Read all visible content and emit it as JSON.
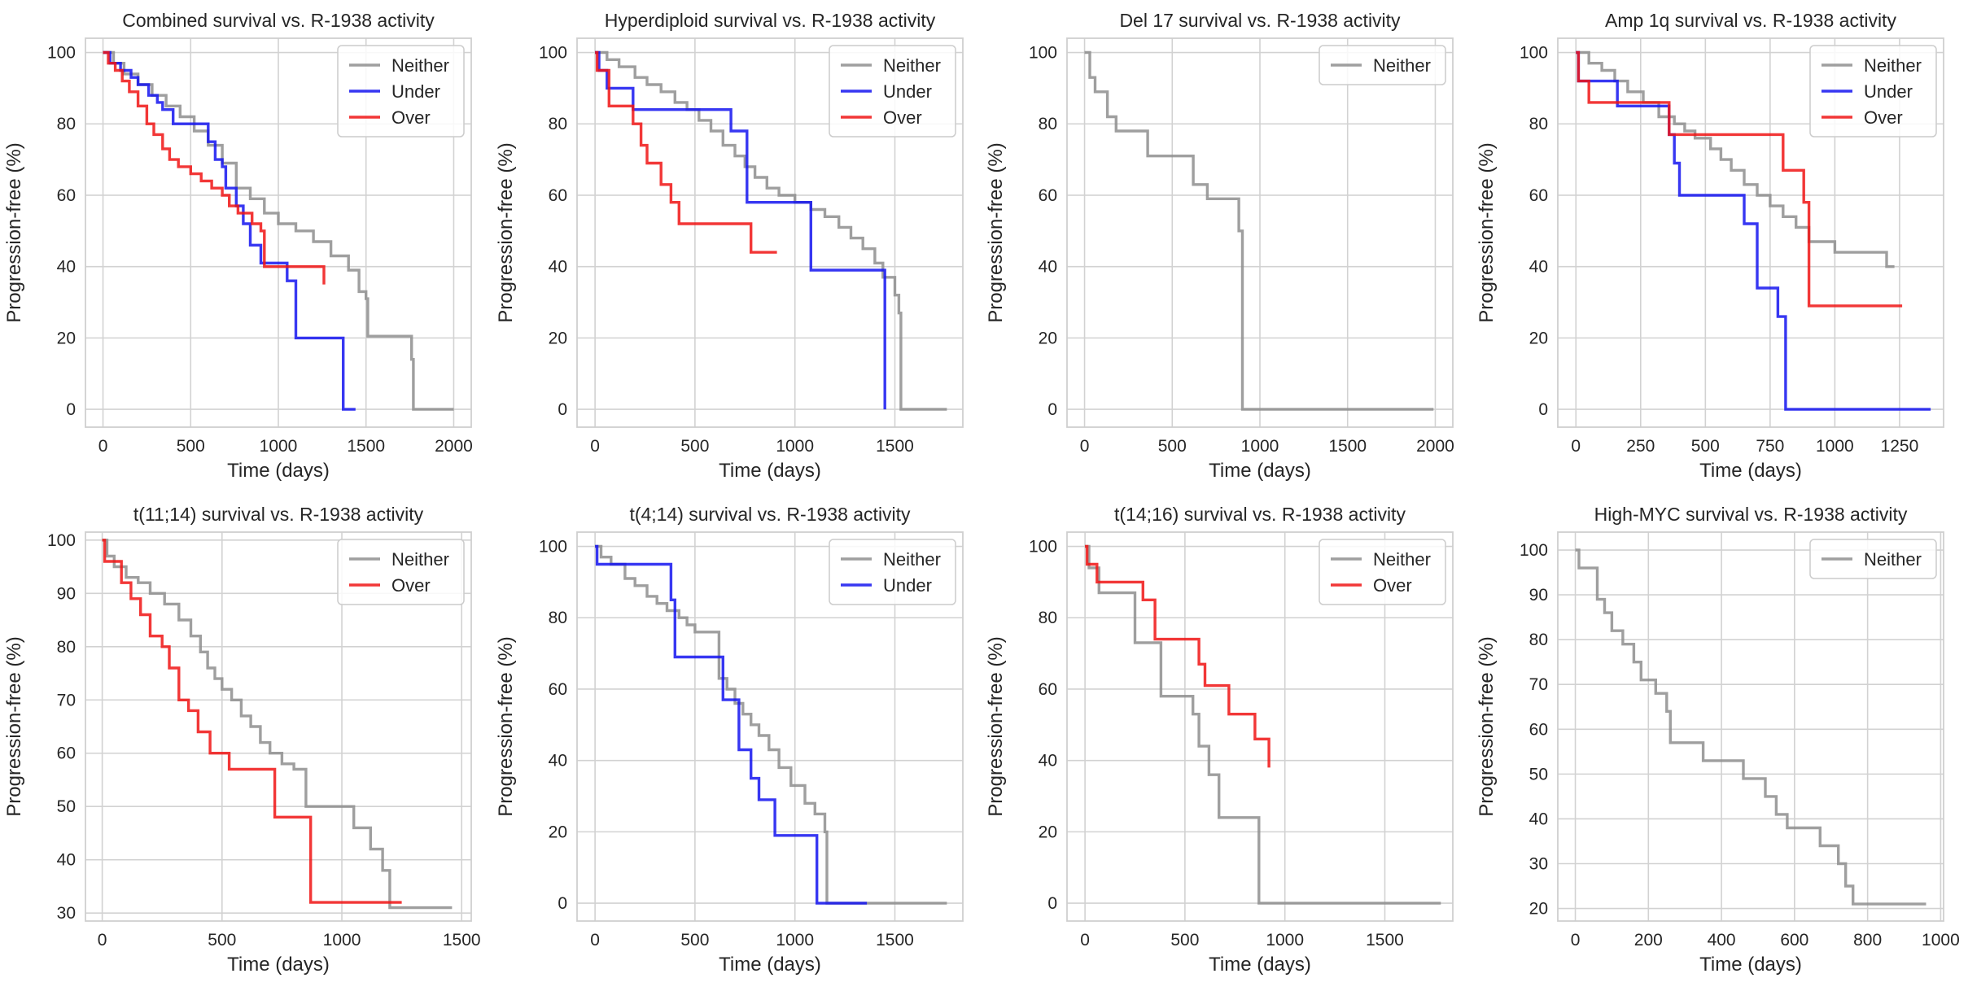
{
  "colors": {
    "Neither": "#8e8e8e",
    "Under": "#1414f0",
    "Over": "#f01414",
    "grid": "#d2d2d2",
    "frame": "#cfcfcf"
  },
  "chart_data": [
    {
      "type": "line",
      "step": true,
      "title": "Combined survival vs. R-1938 activity",
      "xlabel": "Time (days)",
      "ylabel": "Progression-free (%)",
      "xlim": [
        -100,
        2100
      ],
      "ylim": [
        -5,
        104
      ],
      "xticks": [
        0,
        500,
        1000,
        1500,
        2000
      ],
      "xtick_labels": [
        "0",
        "500",
        "1000",
        "1500",
        "2000"
      ],
      "yticks": [
        0,
        20,
        40,
        60,
        80,
        100
      ],
      "ytick_labels": [
        "0",
        "20",
        "40",
        "60",
        "80",
        "100"
      ],
      "grid": true,
      "legend": "top-right",
      "series": [
        {
          "name": "Neither",
          "x": [
            0,
            60,
            120,
            200,
            280,
            360,
            440,
            520,
            600,
            680,
            760,
            840,
            920,
            1000,
            1100,
            1200,
            1300,
            1400,
            1460,
            1500,
            1510,
            1600,
            1700,
            1760,
            1770,
            2000
          ],
          "y": [
            100,
            97,
            94,
            91,
            88,
            85,
            82,
            78,
            74,
            69,
            62,
            59,
            55,
            52,
            50,
            47,
            43,
            39,
            33,
            31,
            20.5,
            20.5,
            20.5,
            14,
            0,
            0
          ]
        },
        {
          "name": "Under",
          "x": [
            0,
            40,
            100,
            160,
            200,
            260,
            310,
            340,
            400,
            560,
            600,
            640,
            680,
            700,
            760,
            800,
            840,
            900,
            1000,
            1050,
            1100,
            1340,
            1370,
            1440
          ],
          "y": [
            100,
            97,
            95,
            93,
            91,
            88,
            86,
            84,
            80,
            80,
            75,
            70,
            68,
            62,
            57,
            52,
            46,
            41,
            41,
            36,
            20,
            20,
            0,
            0
          ]
        },
        {
          "name": "Over",
          "x": [
            0,
            30,
            70,
            110,
            150,
            200,
            250,
            290,
            340,
            380,
            430,
            500,
            560,
            620,
            680,
            720,
            770,
            850,
            900,
            920,
            1100,
            1250,
            1260
          ],
          "y": [
            100,
            97,
            95,
            92,
            89,
            85,
            80,
            77,
            73,
            70,
            68,
            66,
            64,
            62,
            60,
            57,
            55,
            52,
            50,
            40,
            40,
            40,
            35
          ]
        }
      ]
    },
    {
      "type": "line",
      "step": true,
      "title": "Hyperdiploid survival vs. R-1938 activity",
      "xlabel": "Time (days)",
      "ylabel": "Progression-free (%)",
      "xlim": [
        -90,
        1840
      ],
      "ylim": [
        -5,
        104
      ],
      "xticks": [
        0,
        500,
        1000,
        1500
      ],
      "xtick_labels": [
        "0",
        "500",
        "1000",
        "1500"
      ],
      "yticks": [
        0,
        20,
        40,
        60,
        80,
        100
      ],
      "ytick_labels": [
        "0",
        "20",
        "40",
        "60",
        "80",
        "100"
      ],
      "grid": true,
      "legend": "top-right",
      "series": [
        {
          "name": "Neither",
          "x": [
            0,
            60,
            120,
            200,
            260,
            330,
            400,
            460,
            520,
            580,
            640,
            700,
            750,
            800,
            860,
            920,
            1000,
            1080,
            1150,
            1220,
            1280,
            1340,
            1400,
            1440,
            1500,
            1520,
            1530,
            1760
          ],
          "y": [
            100,
            98,
            96,
            93,
            91,
            89,
            86,
            84,
            81,
            78,
            74,
            71,
            68,
            65,
            62,
            60,
            58,
            56,
            54,
            51,
            48,
            45,
            41,
            37,
            32,
            27,
            0,
            0
          ]
        },
        {
          "name": "Under",
          "x": [
            0,
            20,
            60,
            120,
            190,
            430,
            680,
            760,
            1000,
            1080,
            1450
          ],
          "y": [
            100,
            95,
            90,
            90,
            84,
            84,
            78,
            58,
            58,
            39,
            0
          ]
        },
        {
          "name": "Over",
          "x": [
            0,
            10,
            70,
            190,
            230,
            260,
            330,
            380,
            420,
            640,
            780,
            910
          ],
          "y": [
            100,
            95,
            85,
            80,
            74,
            69,
            63,
            58,
            52,
            52,
            44,
            44
          ]
        }
      ]
    },
    {
      "type": "line",
      "step": true,
      "title": "Del 17 survival vs. R-1938 activity",
      "xlabel": "Time (days)",
      "ylabel": "Progression-free (%)",
      "xlim": [
        -100,
        2100
      ],
      "ylim": [
        -5,
        104
      ],
      "xticks": [
        0,
        500,
        1000,
        1500,
        2000
      ],
      "xtick_labels": [
        "0",
        "500",
        "1000",
        "1500",
        "2000"
      ],
      "yticks": [
        0,
        20,
        40,
        60,
        80,
        100
      ],
      "ytick_labels": [
        "0",
        "20",
        "40",
        "60",
        "80",
        "100"
      ],
      "grid": true,
      "legend": "top-right",
      "series": [
        {
          "name": "Neither",
          "x": [
            0,
            30,
            60,
            130,
            180,
            360,
            550,
            620,
            700,
            880,
            900,
            1990
          ],
          "y": [
            100,
            93,
            89,
            82,
            78,
            71,
            71,
            63,
            59,
            50,
            0,
            0
          ]
        }
      ]
    },
    {
      "type": "line",
      "step": true,
      "title": "Amp 1q survival vs. R-1938 activity",
      "xlabel": "Time (days)",
      "ylabel": "Progression-free (%)",
      "xlim": [
        -70,
        1420
      ],
      "ylim": [
        -5,
        104
      ],
      "xticks": [
        0,
        250,
        500,
        750,
        1000,
        1250
      ],
      "xtick_labels": [
        "0",
        "250",
        "500",
        "750",
        "1000",
        "1250"
      ],
      "yticks": [
        0,
        20,
        40,
        60,
        80,
        100
      ],
      "ytick_labels": [
        "0",
        "20",
        "40",
        "60",
        "80",
        "100"
      ],
      "grid": true,
      "legend": "top-right",
      "series": [
        {
          "name": "Neither",
          "x": [
            0,
            50,
            100,
            150,
            200,
            260,
            320,
            380,
            420,
            460,
            520,
            560,
            600,
            650,
            700,
            750,
            800,
            850,
            900,
            1000,
            1100,
            1200,
            1230
          ],
          "y": [
            100,
            97,
            95,
            92,
            89,
            86,
            82,
            80,
            78,
            76,
            73,
            70,
            67,
            63,
            60,
            57,
            54,
            51,
            47,
            44,
            44,
            40,
            40
          ]
        },
        {
          "name": "Under",
          "x": [
            0,
            10,
            160,
            360,
            380,
            400,
            620,
            650,
            700,
            780,
            810,
            1370
          ],
          "y": [
            100,
            92,
            85,
            77,
            69,
            60,
            60,
            52,
            34,
            26,
            0,
            0
          ]
        },
        {
          "name": "Over",
          "x": [
            0,
            10,
            50,
            340,
            360,
            720,
            800,
            880,
            900,
            1260
          ],
          "y": [
            100,
            92,
            86,
            86,
            77,
            77,
            67,
            58,
            29,
            29
          ]
        }
      ]
    },
    {
      "type": "line",
      "step": true,
      "title": "t(11;14) survival vs. R-1938 activity",
      "xlabel": "Time (days)",
      "ylabel": "Progression-free (%)",
      "xlim": [
        -70,
        1540
      ],
      "ylim": [
        28.5,
        101.5
      ],
      "xticks": [
        0,
        500,
        1000,
        1500
      ],
      "xtick_labels": [
        "0",
        "500",
        "1000",
        "1500"
      ],
      "yticks": [
        30,
        40,
        50,
        60,
        70,
        80,
        90,
        100
      ],
      "ytick_labels": [
        "30",
        "40",
        "50",
        "60",
        "70",
        "80",
        "90",
        "100"
      ],
      "grid": true,
      "legend": "top-right",
      "series": [
        {
          "name": "Neither",
          "x": [
            0,
            20,
            50,
            100,
            150,
            200,
            260,
            320,
            370,
            410,
            440,
            470,
            500,
            540,
            580,
            620,
            660,
            700,
            750,
            800,
            850,
            1050,
            1120,
            1170,
            1200,
            1460
          ],
          "y": [
            100,
            97,
            95,
            93,
            92,
            90,
            88,
            85,
            82,
            79,
            76,
            74,
            72,
            70,
            67,
            65,
            62,
            60,
            58,
            57,
            50,
            46,
            42,
            38,
            31,
            31
          ]
        },
        {
          "name": "Over",
          "x": [
            0,
            10,
            80,
            120,
            160,
            200,
            250,
            280,
            320,
            360,
            400,
            450,
            530,
            720,
            870,
            1250
          ],
          "y": [
            100,
            96,
            92,
            89,
            86,
            82,
            80,
            76,
            70,
            68,
            64,
            60,
            57,
            48,
            32,
            32
          ]
        }
      ]
    },
    {
      "type": "line",
      "step": true,
      "title": "t(4;14) survival vs. R-1938 activity",
      "xlabel": "Time (days)",
      "ylabel": "Progression-free (%)",
      "xlim": [
        -90,
        1840
      ],
      "ylim": [
        -5,
        104
      ],
      "xticks": [
        0,
        500,
        1000,
        1500
      ],
      "xtick_labels": [
        "0",
        "500",
        "1000",
        "1500"
      ],
      "yticks": [
        0,
        20,
        40,
        60,
        80,
        100
      ],
      "ytick_labels": [
        "0",
        "20",
        "40",
        "60",
        "80",
        "100"
      ],
      "grid": true,
      "legend": "top-right",
      "series": [
        {
          "name": "Neither",
          "x": [
            0,
            30,
            80,
            150,
            200,
            260,
            310,
            360,
            420,
            460,
            500,
            600,
            620,
            660,
            700,
            740,
            780,
            820,
            870,
            920,
            980,
            1050,
            1100,
            1150,
            1160,
            1760
          ],
          "y": [
            100,
            97,
            95,
            91,
            89,
            86,
            84,
            82,
            80,
            78,
            76,
            76,
            63,
            60,
            56,
            53,
            50,
            47,
            43,
            38,
            33,
            28,
            25,
            20,
            0,
            0
          ]
        },
        {
          "name": "Under",
          "x": [
            0,
            10,
            220,
            380,
            400,
            600,
            640,
            720,
            780,
            820,
            900,
            1110,
            1360
          ],
          "y": [
            100,
            95,
            95,
            85,
            69,
            69,
            57,
            43,
            35,
            29,
            19,
            0,
            0
          ]
        }
      ]
    },
    {
      "type": "line",
      "step": true,
      "title": "t(14;16) survival vs. R-1938 activity",
      "xlabel": "Time (days)",
      "ylabel": "Progression-free (%)",
      "xlim": [
        -90,
        1840
      ],
      "ylim": [
        -5,
        104
      ],
      "xticks": [
        0,
        500,
        1000,
        1500
      ],
      "xtick_labels": [
        "0",
        "500",
        "1000",
        "1500"
      ],
      "yticks": [
        0,
        20,
        40,
        60,
        80,
        100
      ],
      "ytick_labels": [
        "0",
        "20",
        "40",
        "60",
        "80",
        "100"
      ],
      "grid": true,
      "legend": "top-right",
      "series": [
        {
          "name": "Neither",
          "x": [
            0,
            20,
            70,
            250,
            380,
            540,
            570,
            620,
            670,
            870,
            1780
          ],
          "y": [
            100,
            94,
            87,
            73,
            58,
            53,
            44,
            36,
            24,
            0,
            0
          ]
        },
        {
          "name": "Over",
          "x": [
            0,
            10,
            60,
            290,
            350,
            570,
            600,
            720,
            850,
            920
          ],
          "y": [
            100,
            95,
            90,
            85,
            74,
            67,
            61,
            53,
            46,
            38
          ]
        }
      ]
    },
    {
      "type": "line",
      "step": true,
      "title": "High-MYC survival vs. R-1938 activity",
      "xlabel": "Time (days)",
      "ylabel": "Progression-free (%)",
      "xlim": [
        -48,
        1008
      ],
      "ylim": [
        17.2,
        104
      ],
      "xticks": [
        0,
        200,
        400,
        600,
        800,
        1000
      ],
      "xtick_labels": [
        "0",
        "200",
        "400",
        "600",
        "800",
        "1000"
      ],
      "yticks": [
        20,
        30,
        40,
        50,
        60,
        70,
        80,
        90,
        100
      ],
      "ytick_labels": [
        "20",
        "30",
        "40",
        "50",
        "60",
        "70",
        "80",
        "90",
        "100"
      ],
      "grid": true,
      "legend": "top-right",
      "series": [
        {
          "name": "Neither",
          "x": [
            0,
            10,
            60,
            80,
            100,
            130,
            160,
            180,
            220,
            250,
            260,
            350,
            460,
            520,
            550,
            580,
            670,
            720,
            740,
            760,
            960
          ],
          "y": [
            100,
            96,
            89,
            86,
            82,
            79,
            75,
            71,
            68,
            64,
            57,
            53,
            49,
            45,
            41,
            38,
            34,
            30,
            25,
            21,
            21
          ]
        }
      ]
    }
  ]
}
